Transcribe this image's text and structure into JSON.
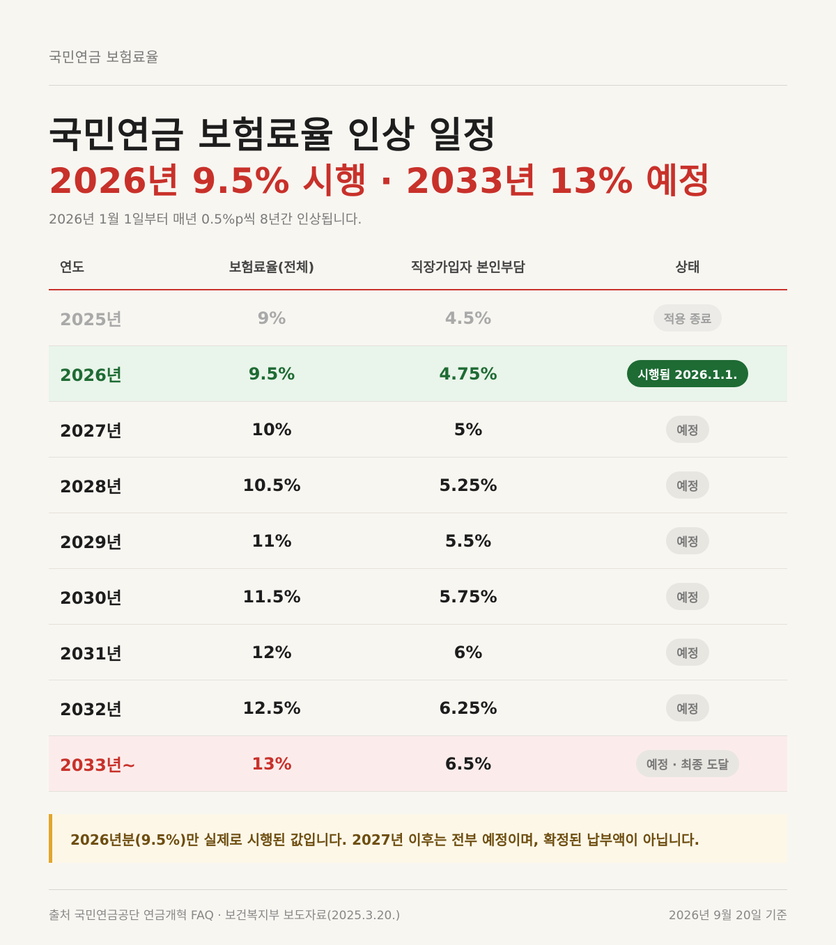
{
  "header": {
    "kicker": "국민연금 보험료율",
    "title_line1": "국민연금 보험료율 인상 일정",
    "title_line2": "2026년 9.5% 시행 · 2033년 13% 예정",
    "subtitle": "2026년 1월 1일부터 매년 0.5%p씩 8년간 인상됩니다."
  },
  "table": {
    "headers": [
      "연도",
      "보험료율(전체)",
      "직장가입자 본인부담",
      "상태"
    ],
    "rows": [
      {
        "year": "2025년",
        "rate": "9%",
        "employee": "4.5%",
        "status": "적용 종료"
      },
      {
        "year": "2026년",
        "rate": "9.5%",
        "employee": "4.75%",
        "status": "시행됨 2026.1.1."
      },
      {
        "year": "2027년",
        "rate": "10%",
        "employee": "5%",
        "status": "예정"
      },
      {
        "year": "2028년",
        "rate": "10.5%",
        "employee": "5.25%",
        "status": "예정"
      },
      {
        "year": "2029년",
        "rate": "11%",
        "employee": "5.5%",
        "status": "예정"
      },
      {
        "year": "2030년",
        "rate": "11.5%",
        "employee": "5.75%",
        "status": "예정"
      },
      {
        "year": "2031년",
        "rate": "12%",
        "employee": "6%",
        "status": "예정"
      },
      {
        "year": "2032년",
        "rate": "12.5%",
        "employee": "6.25%",
        "status": "예정"
      },
      {
        "year": "2033년~",
        "rate": "13%",
        "employee": "6.5%",
        "status": "예정 · 최종 도달"
      }
    ]
  },
  "note": "2026년분(9.5%)만 실제로 시행된 값입니다. 2027년 이후는 전부 예정이며, 확정된 납부액이 아닙니다.",
  "footer": {
    "source": "출처 국민연금공단 연금개혁 FAQ · 보건복지부 보도자료(2025.3.20.)",
    "date": "2026년 9월 20일 기준"
  },
  "colors": {
    "accent_red": "#c8312a",
    "current_green": "#1e6b34",
    "note_amber": "#e2a62c"
  }
}
